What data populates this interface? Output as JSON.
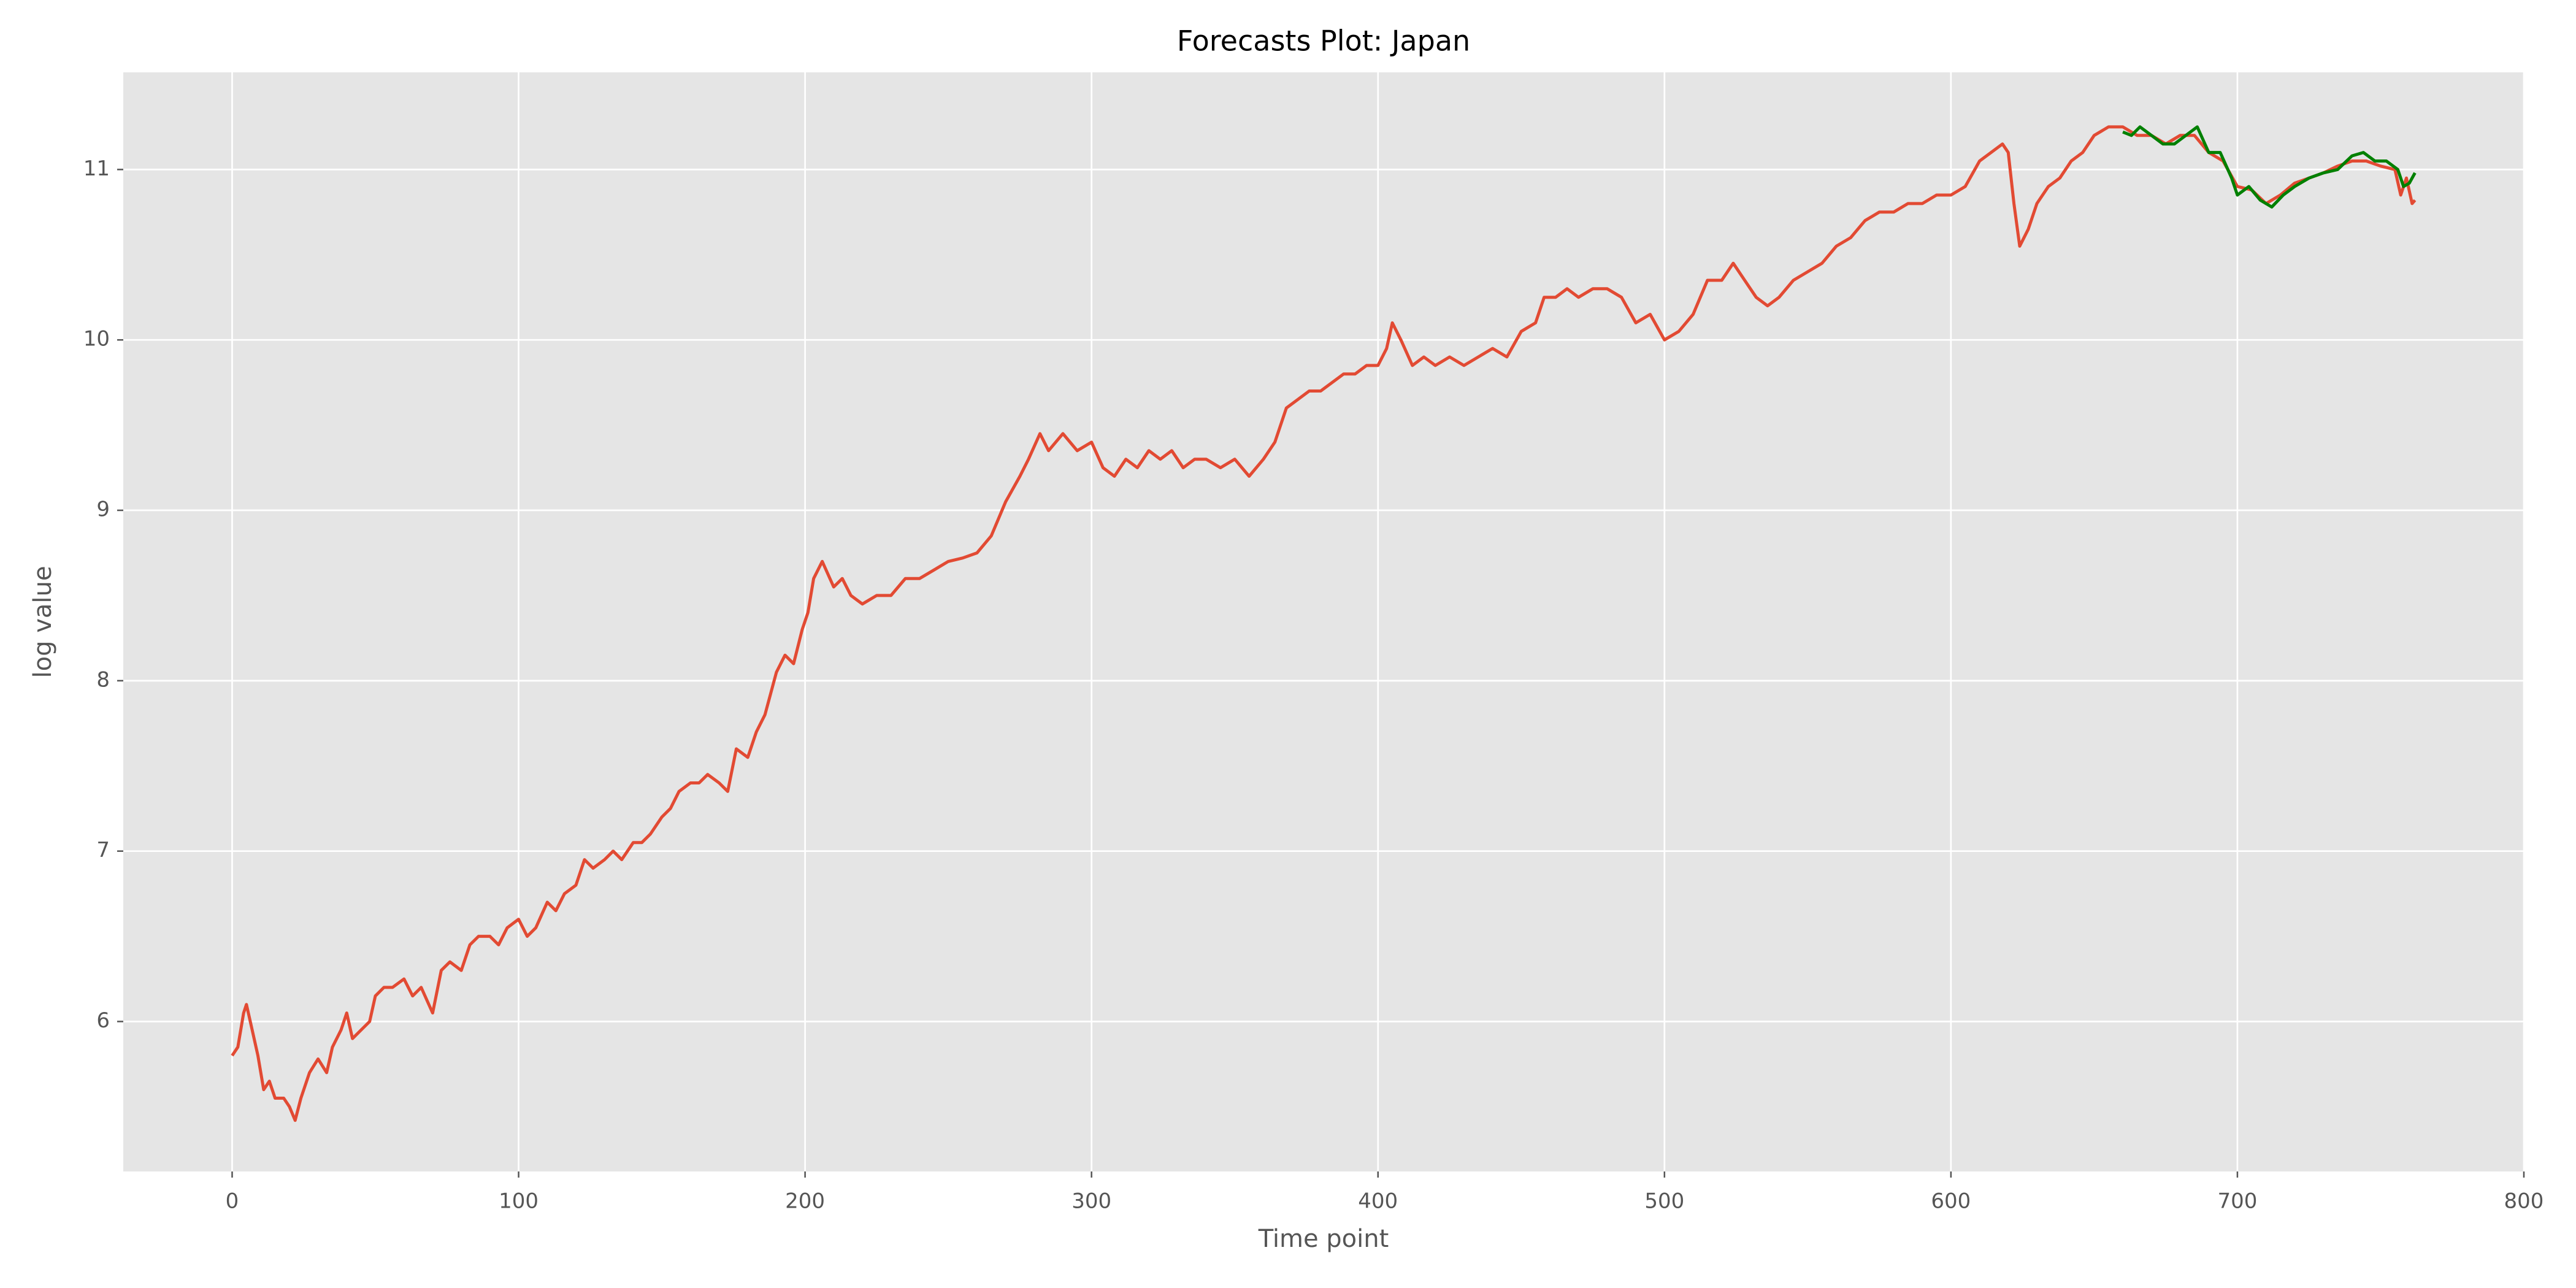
{
  "chart_data": {
    "type": "line",
    "title": "Forecasts Plot: Japan",
    "x_label": "Time point",
    "y_label": "log value",
    "xlim": [
      -38,
      800
    ],
    "ylim": [
      5.12,
      11.57
    ],
    "xticks": [
      0,
      100,
      200,
      300,
      400,
      500,
      600,
      700,
      800
    ],
    "yticks": [
      6,
      7,
      8,
      9,
      10,
      11
    ],
    "grid": true,
    "background": "#e5e5e5",
    "series": [
      {
        "color": "#e24a33",
        "x": [
          0,
          2,
          4,
          5,
          7,
          9,
          11,
          13,
          15,
          18,
          20,
          22,
          24,
          27,
          30,
          33,
          35,
          38,
          40,
          42,
          45,
          48,
          50,
          53,
          56,
          60,
          63,
          66,
          70,
          73,
          76,
          80,
          83,
          86,
          90,
          93,
          96,
          100,
          103,
          106,
          110,
          113,
          116,
          120,
          123,
          126,
          130,
          133,
          136,
          140,
          143,
          146,
          150,
          153,
          156,
          160,
          163,
          166,
          170,
          173,
          176,
          180,
          183,
          186,
          190,
          193,
          196,
          199,
          201,
          203,
          206,
          210,
          213,
          216,
          220,
          225,
          230,
          235,
          240,
          245,
          250,
          255,
          260,
          265,
          270,
          275,
          278,
          282,
          285,
          290,
          295,
          300,
          304,
          308,
          312,
          316,
          320,
          324,
          328,
          332,
          336,
          340,
          345,
          350,
          355,
          360,
          364,
          368,
          372,
          376,
          380,
          384,
          388,
          392,
          396,
          400,
          403,
          405,
          408,
          412,
          416,
          420,
          425,
          430,
          435,
          440,
          445,
          450,
          455,
          458,
          462,
          466,
          470,
          475,
          480,
          485,
          490,
          495,
          500,
          505,
          510,
          515,
          520,
          524,
          528,
          532,
          536,
          540,
          545,
          550,
          555,
          560,
          565,
          570,
          575,
          580,
          585,
          590,
          595,
          600,
          605,
          610,
          614,
          618,
          620,
          622,
          624,
          627,
          630,
          634,
          638,
          642,
          646,
          650,
          655,
          660,
          665,
          670,
          675,
          680,
          685,
          690,
          695,
          700,
          705,
          710,
          715,
          720,
          725,
          730,
          735,
          740,
          745,
          750,
          755,
          757,
          759,
          761,
          762
        ],
        "values": [
          5.8,
          5.85,
          6.05,
          6.1,
          5.95,
          5.8,
          5.6,
          5.65,
          5.55,
          5.55,
          5.5,
          5.42,
          5.55,
          5.7,
          5.78,
          5.7,
          5.85,
          5.95,
          6.05,
          5.9,
          5.95,
          6.0,
          6.15,
          6.2,
          6.2,
          6.25,
          6.15,
          6.2,
          6.05,
          6.3,
          6.35,
          6.3,
          6.45,
          6.5,
          6.5,
          6.45,
          6.55,
          6.6,
          6.5,
          6.55,
          6.7,
          6.65,
          6.75,
          6.8,
          6.95,
          6.9,
          6.95,
          7.0,
          6.95,
          7.05,
          7.05,
          7.1,
          7.2,
          7.25,
          7.35,
          7.4,
          7.4,
          7.45,
          7.4,
          7.35,
          7.6,
          7.55,
          7.7,
          7.8,
          8.05,
          8.15,
          8.1,
          8.3,
          8.4,
          8.6,
          8.7,
          8.55,
          8.6,
          8.5,
          8.45,
          8.5,
          8.5,
          8.6,
          8.6,
          8.65,
          8.7,
          8.72,
          8.75,
          8.85,
          9.05,
          9.2,
          9.3,
          9.45,
          9.35,
          9.45,
          9.35,
          9.4,
          9.25,
          9.2,
          9.3,
          9.25,
          9.35,
          9.3,
          9.35,
          9.25,
          9.3,
          9.3,
          9.25,
          9.3,
          9.2,
          9.3,
          9.4,
          9.6,
          9.65,
          9.7,
          9.7,
          9.75,
          9.8,
          9.8,
          9.85,
          9.85,
          9.95,
          10.1,
          10.0,
          9.85,
          9.9,
          9.85,
          9.9,
          9.85,
          9.9,
          9.95,
          9.9,
          10.05,
          10.1,
          10.25,
          10.25,
          10.3,
          10.25,
          10.3,
          10.3,
          10.25,
          10.1,
          10.15,
          10.0,
          10.05,
          10.15,
          10.35,
          10.35,
          10.45,
          10.35,
          10.25,
          10.2,
          10.25,
          10.35,
          10.4,
          10.45,
          10.55,
          10.6,
          10.7,
          10.75,
          10.75,
          10.8,
          10.8,
          10.85,
          10.85,
          10.9,
          11.05,
          11.1,
          11.15,
          11.1,
          10.8,
          10.55,
          10.65,
          10.8,
          10.9,
          10.95,
          11.05,
          11.1,
          11.2,
          11.25,
          11.25,
          11.2,
          11.2,
          11.15,
          11.2,
          11.2,
          11.1,
          11.05,
          10.9,
          10.88,
          10.8,
          10.85,
          10.92,
          10.95,
          10.98,
          11.02,
          11.05,
          11.05,
          11.02,
          11.0,
          10.85,
          10.95,
          10.8,
          10.82
        ]
      },
      {
        "color": "#008000",
        "x": [
          660,
          663,
          666,
          670,
          674,
          678,
          682,
          686,
          690,
          694,
          698,
          700,
          704,
          708,
          712,
          716,
          720,
          725,
          730,
          735,
          740,
          744,
          748,
          752,
          756,
          758,
          760,
          762
        ],
        "values": [
          11.22,
          11.2,
          11.25,
          11.2,
          11.15,
          11.15,
          11.2,
          11.25,
          11.1,
          11.1,
          10.95,
          10.85,
          10.9,
          10.82,
          10.78,
          10.85,
          10.9,
          10.95,
          10.98,
          11.0,
          11.08,
          11.1,
          11.05,
          11.05,
          11.0,
          10.9,
          10.92,
          10.98
        ]
      }
    ]
  }
}
